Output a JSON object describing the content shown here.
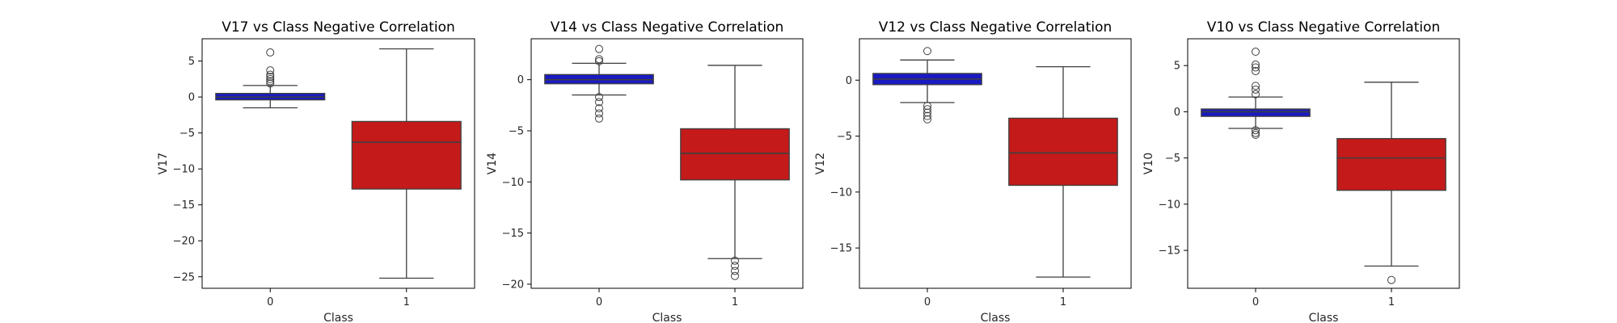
{
  "colors": {
    "class0": "#1a1ac2",
    "class1": "#c41a1a"
  },
  "chart_data": [
    {
      "type": "box",
      "title": "V17 vs Class Negative Correlation",
      "xlabel": "Class",
      "ylabel": "V17",
      "ylim": [
        -26.6,
        8.1
      ],
      "yticks": [
        5,
        0,
        -5,
        -10,
        -15,
        -20,
        -25
      ],
      "ytick_labels": [
        "5",
        "0",
        "−5",
        "−10",
        "−15",
        "−20",
        "−25"
      ],
      "categories": [
        "0",
        "1"
      ],
      "boxes": [
        {
          "category": "0",
          "whisker_low": -1.5,
          "q1": -0.4,
          "median": 0.0,
          "q3": 0.5,
          "whisker_high": 1.6,
          "fliers": [
            1.9,
            2.2,
            2.5,
            2.8,
            3.1,
            3.7,
            6.2
          ]
        },
        {
          "category": "1",
          "whisker_low": -25.2,
          "q1": -12.8,
          "median": -6.3,
          "q3": -3.4,
          "whisker_high": 6.7,
          "fliers": []
        }
      ]
    },
    {
      "type": "box",
      "title": "V14 vs Class Negative Correlation",
      "xlabel": "Class",
      "ylabel": "V14",
      "ylim": [
        -20.4,
        4.0
      ],
      "yticks": [
        0,
        -5,
        -10,
        -15,
        -20
      ],
      "ytick_labels": [
        "0",
        "−5",
        "−10",
        "−15",
        "−20"
      ],
      "categories": [
        "0",
        "1"
      ],
      "boxes": [
        {
          "category": "0",
          "whisker_low": -1.5,
          "q1": -0.4,
          "median": 0.0,
          "q3": 0.5,
          "whisker_high": 1.6,
          "fliers": [
            1.8,
            2.0,
            3.0,
            -1.7,
            -2.2,
            -2.8,
            -3.3,
            -3.8
          ]
        },
        {
          "category": "1",
          "whisker_low": -17.5,
          "q1": -9.8,
          "median": -7.2,
          "q3": -4.8,
          "whisker_high": 1.4,
          "fliers": [
            -17.7,
            -18.2,
            -18.7,
            -19.2
          ]
        }
      ]
    },
    {
      "type": "box",
      "title": "V12 vs Class Negative Correlation",
      "xlabel": "Class",
      "ylabel": "V12",
      "ylim": [
        -18.6,
        3.7
      ],
      "yticks": [
        0,
        -5,
        -10,
        -15
      ],
      "ytick_labels": [
        "0",
        "−5",
        "−10",
        "−15"
      ],
      "categories": [
        "0",
        "1"
      ],
      "boxes": [
        {
          "category": "0",
          "whisker_low": -2.0,
          "q1": -0.4,
          "median": 0.1,
          "q3": 0.6,
          "whisker_high": 1.8,
          "fliers": [
            2.6,
            -2.3,
            -2.6,
            -2.9,
            -3.2,
            -3.5
          ]
        },
        {
          "category": "1",
          "whisker_low": -17.6,
          "q1": -9.4,
          "median": -6.5,
          "q3": -3.4,
          "whisker_high": 1.2,
          "fliers": []
        }
      ]
    },
    {
      "type": "box",
      "title": "V10 vs Class Negative Correlation",
      "xlabel": "Class",
      "ylabel": "V10",
      "ylim": [
        -19.1,
        7.9
      ],
      "yticks": [
        5,
        0,
        -5,
        -10,
        -15
      ],
      "ytick_labels": [
        "5",
        "0",
        "−5",
        "−10",
        "−15"
      ],
      "categories": [
        "0",
        "1"
      ],
      "boxes": [
        {
          "category": "0",
          "whisker_low": -1.8,
          "q1": -0.5,
          "median": 0.0,
          "q3": 0.3,
          "whisker_high": 1.6,
          "fliers": [
            1.9,
            2.4,
            2.8,
            4.4,
            4.8,
            5.1,
            6.5,
            -2.0,
            -2.3,
            -2.5
          ]
        },
        {
          "category": "1",
          "whisker_low": -16.7,
          "q1": -8.5,
          "median": -5.0,
          "q3": -2.9,
          "whisker_high": 3.2,
          "fliers": [
            -18.2
          ]
        }
      ]
    }
  ]
}
